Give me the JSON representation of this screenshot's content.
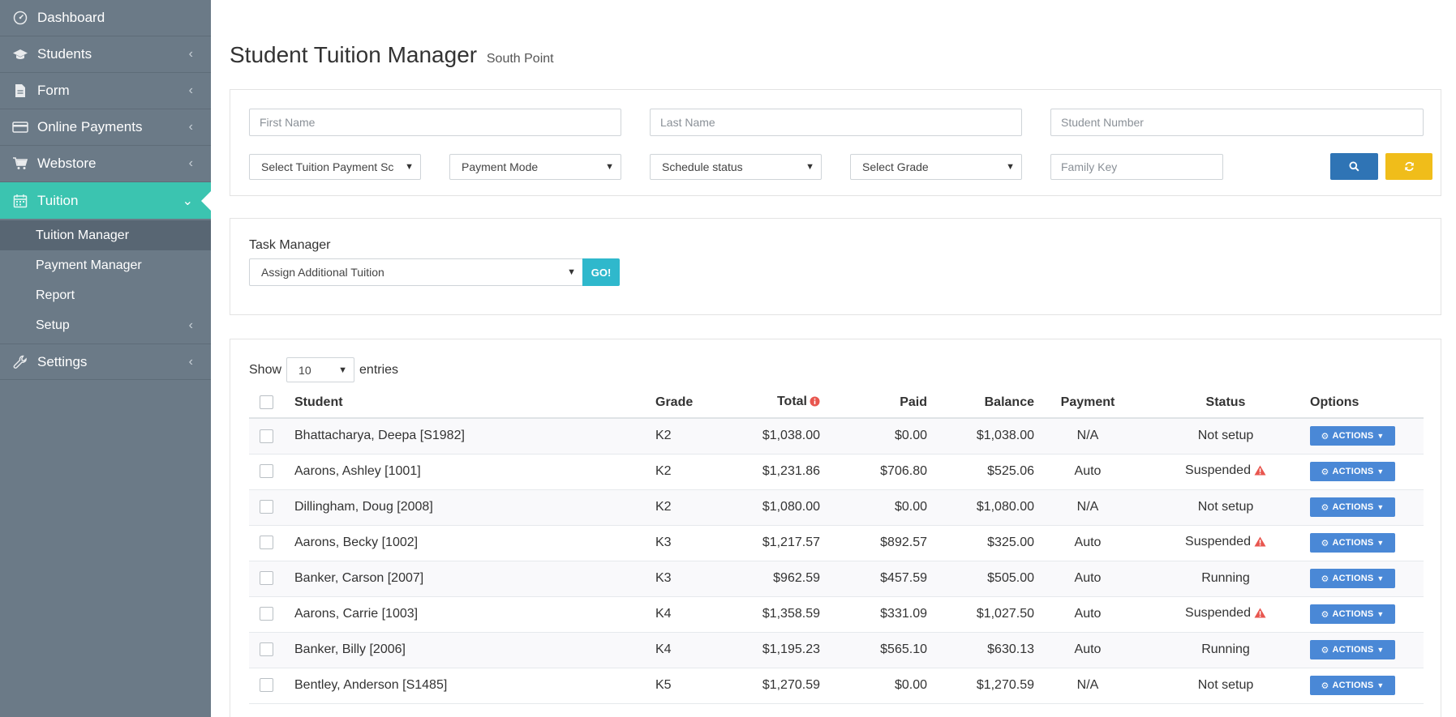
{
  "sidebar": {
    "items": [
      {
        "label": "Dashboard",
        "icon": "dashboard-icon",
        "chevron": false
      },
      {
        "label": "Students",
        "icon": "graduation-cap-icon",
        "chevron": true
      },
      {
        "label": "Form",
        "icon": "document-icon",
        "chevron": true
      },
      {
        "label": "Online Payments",
        "icon": "credit-card-icon",
        "chevron": true
      },
      {
        "label": "Webstore",
        "icon": "cart-icon",
        "chevron": true
      },
      {
        "label": "Tuition",
        "icon": "calendar-icon",
        "chevron": true,
        "active": true
      },
      {
        "label": "Settings",
        "icon": "wrench-icon",
        "chevron": true
      }
    ],
    "tuition_sub": [
      {
        "label": "Tuition Manager",
        "current": true
      },
      {
        "label": "Payment Manager"
      },
      {
        "label": "Report"
      },
      {
        "label": "Setup",
        "chevron": true
      }
    ],
    "active_color": "#3bc4b0"
  },
  "header": {
    "title": "Student Tuition Manager",
    "subtitle": "South Point"
  },
  "filters": {
    "first_name_placeholder": "First Name",
    "last_name_placeholder": "Last Name",
    "student_number_placeholder": "Student Number",
    "schedule_select": "Select Tuition Payment Sc",
    "payment_mode_select": "Payment Mode",
    "schedule_status_select": "Schedule status",
    "grade_select": "Select Grade",
    "family_key_placeholder": "Family Key",
    "search_color": "#2f74b5",
    "reset_color": "#f0bd1a"
  },
  "task_manager": {
    "label": "Task Manager",
    "selected": "Assign Additional Tuition",
    "go_label": "GO!"
  },
  "table": {
    "show_label": "Show",
    "entries_value": "10",
    "entries_label": "entries",
    "columns": {
      "student": "Student",
      "grade": "Grade",
      "total": "Total",
      "paid": "Paid",
      "balance": "Balance",
      "payment": "Payment",
      "status": "Status",
      "options": "Options"
    },
    "action_label": "ACTIONS",
    "rows": [
      {
        "student": "Bhattacharya, Deepa [S1982]",
        "grade": "K2",
        "total": "$1,038.00",
        "paid": "$0.00",
        "balance": "$1,038.00",
        "payment": "N/A",
        "status": "Not setup"
      },
      {
        "student": "Aarons, Ashley [1001]",
        "grade": "K2",
        "total": "$1,231.86",
        "paid": "$706.80",
        "balance": "$525.06",
        "payment": "Auto",
        "status": "Suspended"
      },
      {
        "student": "Dillingham, Doug [2008]",
        "grade": "K2",
        "total": "$1,080.00",
        "paid": "$0.00",
        "balance": "$1,080.00",
        "payment": "N/A",
        "status": "Not setup"
      },
      {
        "student": "Aarons, Becky [1002]",
        "grade": "K3",
        "total": "$1,217.57",
        "paid": "$892.57",
        "balance": "$325.00",
        "payment": "Auto",
        "status": "Suspended"
      },
      {
        "student": "Banker, Carson [2007]",
        "grade": "K3",
        "total": "$962.59",
        "paid": "$457.59",
        "balance": "$505.00",
        "payment": "Auto",
        "status": "Running"
      },
      {
        "student": "Aarons, Carrie [1003]",
        "grade": "K4",
        "total": "$1,358.59",
        "paid": "$331.09",
        "balance": "$1,027.50",
        "payment": "Auto",
        "status": "Suspended"
      },
      {
        "student": "Banker, Billy [2006]",
        "grade": "K4",
        "total": "$1,195.23",
        "paid": "$565.10",
        "balance": "$630.13",
        "payment": "Auto",
        "status": "Running"
      },
      {
        "student": "Bentley, Anderson [S1485]",
        "grade": "K5",
        "total": "$1,270.59",
        "paid": "$0.00",
        "balance": "$1,270.59",
        "payment": "N/A",
        "status": "Not setup"
      }
    ]
  }
}
